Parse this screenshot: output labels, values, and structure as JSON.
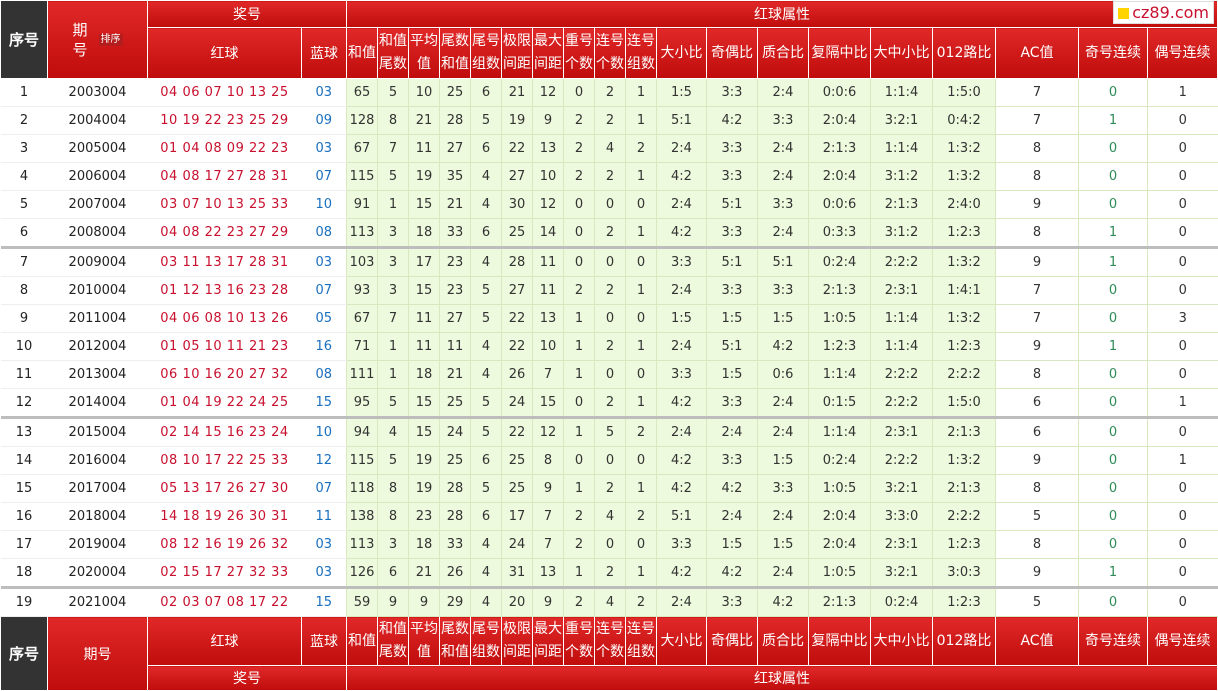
{
  "watermark": "cz89.com",
  "header": {
    "seq": "序号",
    "issue": "期号",
    "sort": "排序",
    "prize": "奖号",
    "attrs": "红球属性",
    "red": "红球",
    "blue": "蓝球",
    "cols": [
      "和值",
      "和值尾数",
      "平均值",
      "尾数和值",
      "尾号组数",
      "极限间距",
      "最大间距",
      "重号个数",
      "连号个数",
      "连号组数",
      "大小比",
      "奇偶比",
      "质合比",
      "复隔中比",
      "大中小比",
      "012路比",
      "AC值",
      "奇号连续",
      "偶号连续"
    ]
  },
  "rows": [
    {
      "n": "1",
      "issue": "2003004",
      "red": "04 06 07 10 13 25",
      "blue": "03",
      "v": [
        "65",
        "5",
        "10",
        "25",
        "6",
        "21",
        "12",
        "0",
        "2",
        "1",
        "1:5",
        "3:3",
        "2:4",
        "0:0:6",
        "1:1:4",
        "1:5:0",
        "7",
        "0",
        "1"
      ]
    },
    {
      "n": "2",
      "issue": "2004004",
      "red": "10 19 22 23 25 29",
      "blue": "09",
      "v": [
        "128",
        "8",
        "21",
        "28",
        "5",
        "19",
        "9",
        "2",
        "2",
        "1",
        "5:1",
        "4:2",
        "3:3",
        "2:0:4",
        "3:2:1",
        "0:4:2",
        "7",
        "1",
        "0"
      ]
    },
    {
      "n": "3",
      "issue": "2005004",
      "red": "01 04 08 09 22 23",
      "blue": "03",
      "v": [
        "67",
        "7",
        "11",
        "27",
        "6",
        "22",
        "13",
        "2",
        "4",
        "2",
        "2:4",
        "3:3",
        "2:4",
        "2:1:3",
        "1:1:4",
        "1:3:2",
        "8",
        "0",
        "0"
      ]
    },
    {
      "n": "4",
      "issue": "2006004",
      "red": "04 08 17 27 28 31",
      "blue": "07",
      "v": [
        "115",
        "5",
        "19",
        "35",
        "4",
        "27",
        "10",
        "2",
        "2",
        "1",
        "4:2",
        "3:3",
        "2:4",
        "2:0:4",
        "3:1:2",
        "1:3:2",
        "8",
        "0",
        "0"
      ]
    },
    {
      "n": "5",
      "issue": "2007004",
      "red": "03 07 10 13 25 33",
      "blue": "10",
      "v": [
        "91",
        "1",
        "15",
        "21",
        "4",
        "30",
        "12",
        "0",
        "0",
        "0",
        "2:4",
        "5:1",
        "3:3",
        "0:0:6",
        "2:1:3",
        "2:4:0",
        "9",
        "0",
        "0"
      ]
    },
    {
      "n": "6",
      "issue": "2008004",
      "red": "04 08 22 23 27 29",
      "blue": "08",
      "v": [
        "113",
        "3",
        "18",
        "33",
        "6",
        "25",
        "14",
        "0",
        "2",
        "1",
        "4:2",
        "3:3",
        "2:4",
        "0:3:3",
        "3:1:2",
        "1:2:3",
        "8",
        "1",
        "0"
      ]
    },
    {
      "n": "7",
      "issue": "2009004",
      "red": "03 11 13 17 28 31",
      "blue": "03",
      "v": [
        "103",
        "3",
        "17",
        "23",
        "4",
        "28",
        "11",
        "0",
        "0",
        "0",
        "3:3",
        "5:1",
        "5:1",
        "0:2:4",
        "2:2:2",
        "1:3:2",
        "9",
        "1",
        "0"
      ]
    },
    {
      "n": "8",
      "issue": "2010004",
      "red": "01 12 13 16 23 28",
      "blue": "07",
      "v": [
        "93",
        "3",
        "15",
        "23",
        "5",
        "27",
        "11",
        "2",
        "2",
        "1",
        "2:4",
        "3:3",
        "3:3",
        "2:1:3",
        "2:3:1",
        "1:4:1",
        "7",
        "0",
        "0"
      ]
    },
    {
      "n": "9",
      "issue": "2011004",
      "red": "04 06 08 10 13 26",
      "blue": "05",
      "v": [
        "67",
        "7",
        "11",
        "27",
        "5",
        "22",
        "13",
        "1",
        "0",
        "0",
        "1:5",
        "1:5",
        "1:5",
        "1:0:5",
        "1:1:4",
        "1:3:2",
        "7",
        "0",
        "3"
      ]
    },
    {
      "n": "10",
      "issue": "2012004",
      "red": "01 05 10 11 21 23",
      "blue": "16",
      "v": [
        "71",
        "1",
        "11",
        "11",
        "4",
        "22",
        "10",
        "1",
        "2",
        "1",
        "2:4",
        "5:1",
        "4:2",
        "1:2:3",
        "1:1:4",
        "1:2:3",
        "9",
        "1",
        "0"
      ]
    },
    {
      "n": "11",
      "issue": "2013004",
      "red": "06 10 16 20 27 32",
      "blue": "08",
      "v": [
        "111",
        "1",
        "18",
        "21",
        "4",
        "26",
        "7",
        "1",
        "0",
        "0",
        "3:3",
        "1:5",
        "0:6",
        "1:1:4",
        "2:2:2",
        "2:2:2",
        "8",
        "0",
        "0"
      ]
    },
    {
      "n": "12",
      "issue": "2014004",
      "red": "01 04 19 22 24 25",
      "blue": "15",
      "v": [
        "95",
        "5",
        "15",
        "25",
        "5",
        "24",
        "15",
        "0",
        "2",
        "1",
        "4:2",
        "3:3",
        "2:4",
        "0:1:5",
        "2:2:2",
        "1:5:0",
        "6",
        "0",
        "1"
      ]
    },
    {
      "n": "13",
      "issue": "2015004",
      "red": "02 14 15 16 23 24",
      "blue": "10",
      "v": [
        "94",
        "4",
        "15",
        "24",
        "5",
        "22",
        "12",
        "1",
        "5",
        "2",
        "2:4",
        "2:4",
        "2:4",
        "1:1:4",
        "2:3:1",
        "2:1:3",
        "6",
        "0",
        "0"
      ]
    },
    {
      "n": "14",
      "issue": "2016004",
      "red": "08 10 17 22 25 33",
      "blue": "12",
      "v": [
        "115",
        "5",
        "19",
        "25",
        "6",
        "25",
        "8",
        "0",
        "0",
        "0",
        "4:2",
        "3:3",
        "1:5",
        "0:2:4",
        "2:2:2",
        "1:3:2",
        "9",
        "0",
        "1"
      ]
    },
    {
      "n": "15",
      "issue": "2017004",
      "red": "05 13 17 26 27 30",
      "blue": "07",
      "v": [
        "118",
        "8",
        "19",
        "28",
        "5",
        "25",
        "9",
        "1",
        "2",
        "1",
        "4:2",
        "4:2",
        "3:3",
        "1:0:5",
        "3:2:1",
        "2:1:3",
        "8",
        "0",
        "0"
      ]
    },
    {
      "n": "16",
      "issue": "2018004",
      "red": "14 18 19 26 30 31",
      "blue": "11",
      "v": [
        "138",
        "8",
        "23",
        "28",
        "6",
        "17",
        "7",
        "2",
        "4",
        "2",
        "5:1",
        "2:4",
        "2:4",
        "2:0:4",
        "3:3:0",
        "2:2:2",
        "5",
        "0",
        "0"
      ]
    },
    {
      "n": "17",
      "issue": "2019004",
      "red": "08 12 16 19 26 32",
      "blue": "03",
      "v": [
        "113",
        "3",
        "18",
        "33",
        "4",
        "24",
        "7",
        "2",
        "0",
        "0",
        "3:3",
        "1:5",
        "1:5",
        "2:0:4",
        "2:3:1",
        "1:2:3",
        "8",
        "0",
        "0"
      ]
    },
    {
      "n": "18",
      "issue": "2020004",
      "red": "02 15 17 27 32 33",
      "blue": "03",
      "v": [
        "126",
        "6",
        "21",
        "26",
        "4",
        "31",
        "13",
        "1",
        "2",
        "1",
        "4:2",
        "4:2",
        "2:4",
        "1:0:5",
        "3:2:1",
        "3:0:3",
        "9",
        "1",
        "0"
      ]
    },
    {
      "n": "19",
      "issue": "2021004",
      "red": "02 03 07 08 17 22",
      "blue": "15",
      "v": [
        "59",
        "9",
        "9",
        "29",
        "4",
        "20",
        "9",
        "2",
        "4",
        "2",
        "2:4",
        "3:3",
        "4:2",
        "2:1:3",
        "0:2:4",
        "1:2:3",
        "5",
        "0",
        "0"
      ]
    }
  ]
}
